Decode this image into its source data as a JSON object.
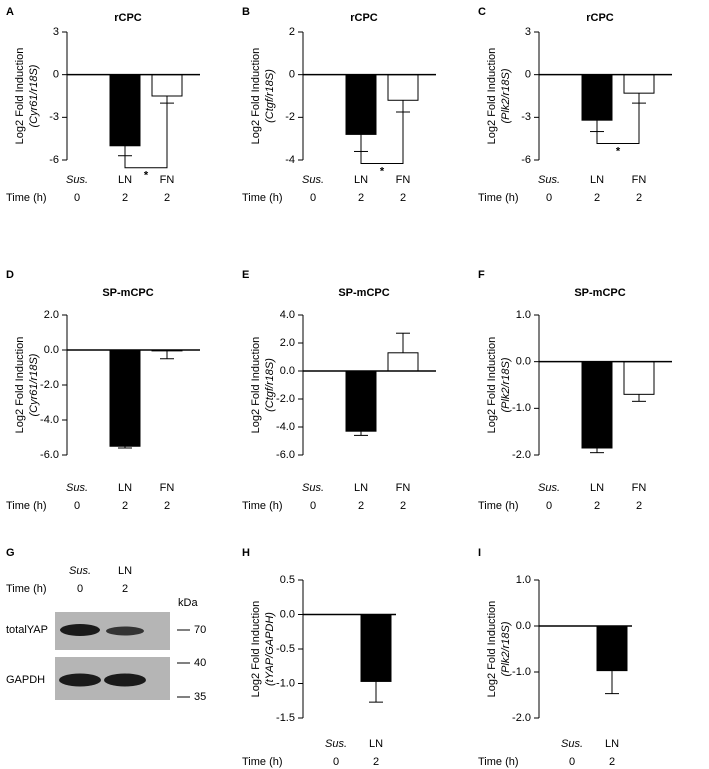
{
  "chart_data": [
    {
      "type": "bar",
      "panel": "A",
      "title": "rCPC",
      "ylabel": "Log2 Fold Induction",
      "ylabel_sub": "(Cyr61/r18S)",
      "categories": [
        "Sus.",
        "LN",
        "FN"
      ],
      "row_label": "Time (h)",
      "times": [
        "0",
        "2",
        "2"
      ],
      "values": [
        0,
        -5.0,
        -1.5
      ],
      "errors": [
        null,
        0.7,
        0.5
      ],
      "colors": [
        "#000000",
        "#000000",
        "#ffffff"
      ],
      "ylim": [
        -6,
        3
      ],
      "yticks": [
        3,
        0,
        -3,
        -6
      ],
      "significance": "*"
    },
    {
      "type": "bar",
      "panel": "B",
      "title": "rCPC",
      "ylabel": "Log2 Fold Induction",
      "ylabel_sub": "(Ctgf/r18S)",
      "categories": [
        "Sus.",
        "LN",
        "FN"
      ],
      "row_label": "Time (h)",
      "times": [
        "0",
        "2",
        "2"
      ],
      "values": [
        0,
        -2.8,
        -1.2
      ],
      "errors": [
        null,
        0.8,
        0.55
      ],
      "colors": [
        "#000000",
        "#000000",
        "#ffffff"
      ],
      "ylim": [
        -4,
        2
      ],
      "yticks": [
        2,
        0,
        -2,
        -4
      ],
      "significance": "*"
    },
    {
      "type": "bar",
      "panel": "C",
      "title": "rCPC",
      "ylabel": "Log2 Fold Induction",
      "ylabel_sub": "(Plk2/r18S)",
      "categories": [
        "Sus.",
        "LN",
        "FN"
      ],
      "row_label": "Time (h)",
      "times": [
        "0",
        "2",
        "2"
      ],
      "values": [
        0,
        -3.2,
        -1.3
      ],
      "errors": [
        null,
        0.8,
        0.7
      ],
      "colors": [
        "#000000",
        "#000000",
        "#ffffff"
      ],
      "ylim": [
        -6,
        3
      ],
      "yticks": [
        3,
        0,
        -3,
        -6
      ],
      "significance": "*"
    },
    {
      "type": "bar",
      "panel": "D",
      "title": "SP-mCPC",
      "ylabel": "Log2 Fold Induction",
      "ylabel_sub": "(Cyr61/r18S)",
      "categories": [
        "Sus.",
        "LN",
        "FN"
      ],
      "row_label": "Time (h)",
      "times": [
        "0",
        "2",
        "2"
      ],
      "values": [
        0,
        -5.5,
        -0.05
      ],
      "errors": [
        null,
        0.1,
        0.45
      ],
      "colors": [
        "#000000",
        "#000000",
        "#ffffff"
      ],
      "ylim": [
        -6,
        2
      ],
      "yticks": [
        {
          "value": 2,
          "label": "2.0"
        },
        {
          "value": 0,
          "label": "0.0"
        },
        {
          "value": -2,
          "label": "-2.0"
        },
        {
          "value": -4,
          "label": "-4.0"
        },
        {
          "value": -6,
          "label": "-6.0"
        }
      ]
    },
    {
      "type": "bar",
      "panel": "E",
      "title": "SP-mCPC",
      "ylabel": "Log2 Fold Induction",
      "ylabel_sub": "(Ctgf/r18S)",
      "categories": [
        "Sus.",
        "LN",
        "FN"
      ],
      "row_label": "Time (h)",
      "times": [
        "0",
        "2",
        "2"
      ],
      "values": [
        0,
        -4.3,
        1.3
      ],
      "errors": [
        null,
        0.3,
        1.4
      ],
      "colors": [
        "#000000",
        "#000000",
        "#ffffff"
      ],
      "ylim": [
        -6,
        4
      ],
      "yticks": [
        {
          "value": 4,
          "label": "4.0"
        },
        {
          "value": 2,
          "label": "2.0"
        },
        {
          "value": 0,
          "label": "0.0"
        },
        {
          "value": -2,
          "label": "-2.0"
        },
        {
          "value": -4,
          "label": "-4.0"
        },
        {
          "value": -6,
          "label": "-6.0"
        }
      ]
    },
    {
      "type": "bar",
      "panel": "F",
      "title": "SP-mCPC",
      "ylabel": "Log2 Fold Induction",
      "ylabel_sub": "(Plk2/r18S)",
      "categories": [
        "Sus.",
        "LN",
        "FN"
      ],
      "row_label": "Time (h)",
      "times": [
        "0",
        "2",
        "2"
      ],
      "values": [
        0,
        -1.85,
        -0.7
      ],
      "errors": [
        null,
        0.1,
        0.15
      ],
      "colors": [
        "#000000",
        "#000000",
        "#ffffff"
      ],
      "ylim": [
        -2,
        1
      ],
      "yticks": [
        {
          "value": 1,
          "label": "1.0"
        },
        {
          "value": 0,
          "label": "0.0"
        },
        {
          "value": -1,
          "label": "-1.0"
        },
        {
          "value": -2,
          "label": "-2.0"
        }
      ]
    },
    {
      "type": "bar",
      "panel": "H",
      "ylabel": "Log2 Fold Induction",
      "ylabel_sub": "(tYAP/GAPDH)",
      "categories": [
        "Sus.",
        "LN"
      ],
      "row_label": "Time (h)",
      "times": [
        "0",
        "2"
      ],
      "values": [
        0,
        -0.97
      ],
      "errors": [
        null,
        0.3
      ],
      "colors": [
        "#000000",
        "#000000"
      ],
      "ylim": [
        -1.5,
        0.5
      ],
      "yticks": [
        {
          "value": 0.5,
          "label": "0.5"
        },
        {
          "value": 0,
          "label": "0.0"
        },
        {
          "value": -0.5,
          "label": "-0.5"
        },
        {
          "value": -1,
          "label": "-1.0"
        },
        {
          "value": -1.5,
          "label": "-1.5"
        }
      ]
    },
    {
      "type": "bar",
      "panel": "I",
      "ylabel": "Log2 Fold Induction",
      "ylabel_sub": "(Plk2/r18S)",
      "categories": [
        "Sus.",
        "LN"
      ],
      "row_label": "Time (h)",
      "times": [
        "0",
        "2"
      ],
      "values": [
        0,
        -0.97
      ],
      "errors": [
        null,
        0.5
      ],
      "colors": [
        "#000000",
        "#000000"
      ],
      "ylim": [
        -2,
        1
      ],
      "yticks": [
        {
          "value": 1,
          "label": "1.0"
        },
        {
          "value": 0,
          "label": "0.0"
        },
        {
          "value": -1,
          "label": "-1.0"
        },
        {
          "value": -2,
          "label": "-2.0"
        }
      ]
    }
  ],
  "blot": {
    "panel": "G",
    "categories": [
      "Sus.",
      "LN"
    ],
    "row_label": "Time (h)",
    "times": [
      "0",
      "2"
    ],
    "unit": "kDa",
    "bands": [
      "totalYAP",
      "GAPDH"
    ],
    "markers": [
      "70",
      "40",
      "35"
    ]
  }
}
